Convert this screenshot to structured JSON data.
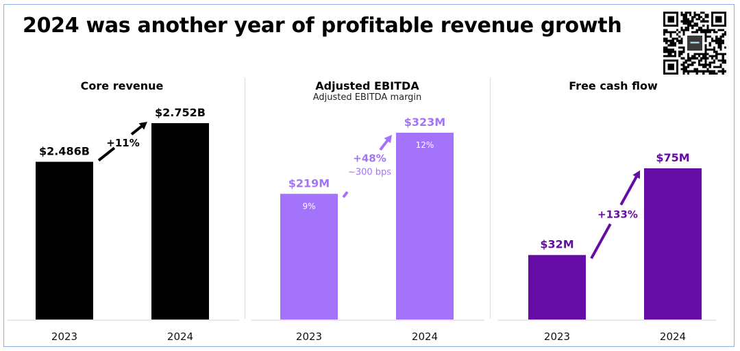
{
  "slide": {
    "title": "2024 was another year of profitable revenue growth",
    "qr_code": "qr-code"
  },
  "chart_data": [
    {
      "type": "bar",
      "title": "Core revenue",
      "subtitle": "",
      "categories": [
        "2023",
        "2024"
      ],
      "values": [
        2.486,
        2.752
      ],
      "units": "USD billions",
      "value_labels": [
        "$2.486B",
        "$2.752B"
      ],
      "inner_labels": [
        "",
        ""
      ],
      "growth_label": "+11%",
      "growth_sublabel": "",
      "color": "#000000",
      "label_color": "#000000",
      "xlabel": "",
      "ylabel": "",
      "axis_visible": false,
      "grid": false
    },
    {
      "type": "bar",
      "title": "Adjusted EBITDA",
      "subtitle": "Adjusted EBITDA margin",
      "categories": [
        "2023",
        "2024"
      ],
      "values": [
        219,
        323
      ],
      "units": "USD millions",
      "value_labels": [
        "$219M",
        "$323M"
      ],
      "inner_labels": [
        "9%",
        "12%"
      ],
      "margins_percent": [
        9,
        12
      ],
      "growth_label": "+48%",
      "growth_sublabel": "~300 bps",
      "color": "#a374fb",
      "label_color": "#a374fb",
      "xlabel": "",
      "ylabel": "",
      "axis_visible": false,
      "grid": false
    },
    {
      "type": "bar",
      "title": "Free cash flow",
      "subtitle": "",
      "categories": [
        "2023",
        "2024"
      ],
      "values": [
        32,
        75
      ],
      "units": "USD millions",
      "value_labels": [
        "$32M",
        "$75M"
      ],
      "inner_labels": [
        "",
        ""
      ],
      "growth_label": "+133%",
      "growth_sublabel": "",
      "color": "#650ba6",
      "label_color": "#650ba6",
      "xlabel": "",
      "ylabel": "",
      "axis_visible": false,
      "grid": false
    }
  ]
}
